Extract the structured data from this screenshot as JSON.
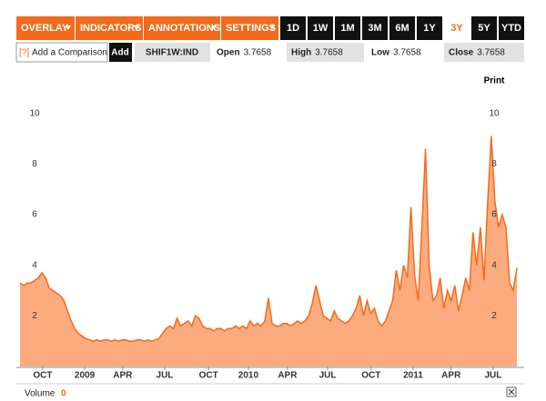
{
  "toolbar": {
    "menus": [
      "OVERLAY",
      "INDICATORS",
      "ANNOTATIONS",
      "SETTINGS"
    ],
    "periods": [
      "1D",
      "1W",
      "1M",
      "3M",
      "6M",
      "1Y",
      "3Y",
      "5Y",
      "YTD"
    ],
    "active_period": "3Y"
  },
  "comparison": {
    "help": "[?]",
    "placeholder": "Add a Comparison",
    "button": "Add"
  },
  "quote": {
    "ticker": "SHIF1W:IND",
    "fields": [
      {
        "label": "Open",
        "value": 3.7658
      },
      {
        "label": "High",
        "value": 3.7658
      },
      {
        "label": "Low",
        "value": 3.7658
      },
      {
        "label": "Close",
        "value": 3.7658
      }
    ]
  },
  "print": "Print",
  "volume": {
    "label": "Volume",
    "value": 0
  },
  "chart_data": {
    "type": "area",
    "color": "#f26b1d",
    "fill": "#fbab7d",
    "values": [
      3.3,
      3.2,
      3.3,
      3.3,
      3.4,
      3.5,
      3.7,
      3.5,
      3.1,
      3.0,
      2.9,
      2.8,
      2.6,
      2.2,
      1.8,
      1.5,
      1.3,
      1.2,
      1.1,
      1.05,
      1.0,
      1.05,
      1.0,
      1.05,
      1.05,
      1.0,
      1.05,
      1.0,
      1.05,
      1.05,
      1.0,
      1.0,
      1.05,
      1.05,
      1.0,
      1.05,
      1.0,
      1.05,
      1.1,
      1.3,
      1.5,
      1.6,
      1.5,
      1.9,
      1.6,
      1.7,
      1.8,
      1.6,
      2.0,
      1.9,
      1.6,
      1.5,
      1.5,
      1.4,
      1.5,
      1.5,
      1.4,
      1.5,
      1.5,
      1.6,
      1.5,
      1.6,
      1.5,
      1.8,
      1.6,
      1.7,
      1.6,
      1.8,
      2.7,
      1.7,
      1.6,
      1.6,
      1.7,
      1.7,
      1.6,
      1.7,
      1.8,
      1.7,
      1.8,
      2.0,
      2.5,
      3.2,
      2.6,
      2.0,
      1.9,
      1.8,
      2.2,
      1.9,
      1.8,
      1.7,
      1.8,
      2.0,
      2.3,
      2.8,
      2.0,
      2.6,
      2.1,
      2.3,
      1.8,
      1.6,
      1.8,
      2.2,
      2.6,
      3.8,
      3.0,
      4.0,
      3.5,
      6.3,
      3.6,
      2.6,
      5.5,
      8.6,
      4.0,
      2.6,
      2.8,
      3.5,
      2.3,
      3.0,
      2.6,
      3.2,
      2.2,
      2.8,
      3.5,
      3.0,
      5.3,
      4.0,
      5.5,
      3.4,
      6.5,
      9.1,
      6.5,
      5.5,
      6.0,
      5.5,
      3.3,
      3.0,
      3.9
    ],
    "xlim": [
      0,
      136
    ],
    "xticks": [
      {
        "value": 6.2,
        "label": "OCT"
      },
      {
        "value": 17.7,
        "label": "2009"
      },
      {
        "value": 28.1,
        "label": "APR"
      },
      {
        "value": 39.6,
        "label": "JUL"
      },
      {
        "value": 51.6,
        "label": "OCT"
      },
      {
        "value": 62.5,
        "label": "2010"
      },
      {
        "value": 73.2,
        "label": "APR"
      },
      {
        "value": 84.2,
        "label": "JUL"
      },
      {
        "value": 96.1,
        "label": "OCT"
      },
      {
        "value": 107.6,
        "label": "2011"
      },
      {
        "value": 118,
        "label": "APR"
      },
      {
        "value": 129.5,
        "label": "JUL"
      }
    ],
    "ylim": [
      0,
      10.6
    ],
    "yticks": [
      2,
      4,
      6,
      8,
      10
    ]
  }
}
